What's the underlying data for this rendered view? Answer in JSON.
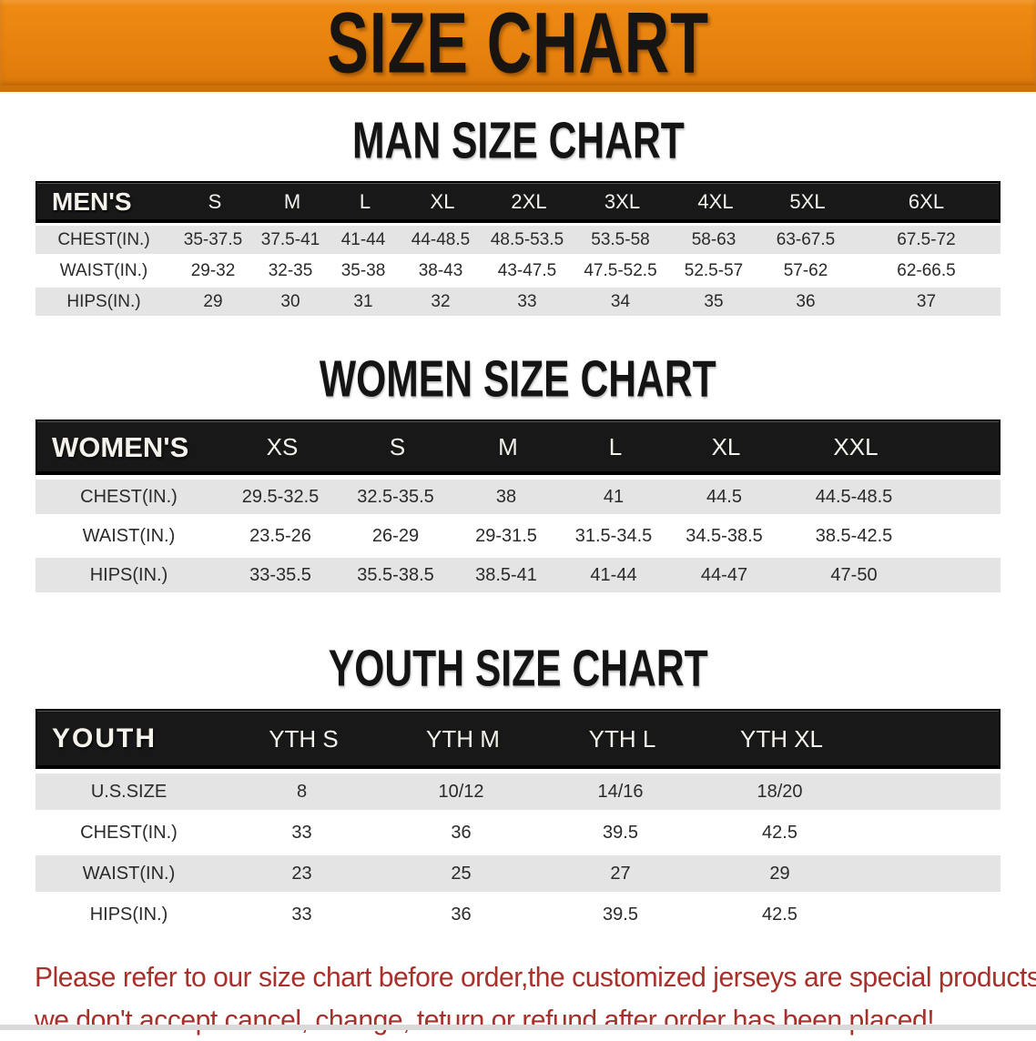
{
  "banner": {
    "title": "SIZE CHART",
    "bg_color": "#e8820e",
    "text_color": "#181411"
  },
  "colors": {
    "header_bar": "#181818",
    "row_shade": "#e4e4e4",
    "disclaimer_red": "#a8302a"
  },
  "chart_data": [
    {
      "type": "table",
      "id": "men",
      "title": "MAN SIZE CHART",
      "columns": [
        "MEN'S",
        "S",
        "M",
        "L",
        "XL",
        "2XL",
        "3XL",
        "4XL",
        "5XL",
        "6XL"
      ],
      "rows": [
        {
          "label": "CHEST(IN.)",
          "values": [
            "35-37.5",
            "37.5-41",
            "41-44",
            "44-48.5",
            "48.5-53.5",
            "53.5-58",
            "58-63",
            "63-67.5",
            "67.5-72"
          ]
        },
        {
          "label": "WAIST(IN.)",
          "values": [
            "29-32",
            "32-35",
            "35-38",
            "38-43",
            "43-47.5",
            "47.5-52.5",
            "52.5-57",
            "57-62",
            "62-66.5"
          ]
        },
        {
          "label": "HIPS(IN.)",
          "values": [
            "29",
            "30",
            "31",
            "32",
            "33",
            "34",
            "35",
            "36",
            "37"
          ]
        }
      ]
    },
    {
      "type": "table",
      "id": "women",
      "title": "WOMEN SIZE CHART",
      "columns": [
        "WOMEN'S",
        "XS",
        "S",
        "M",
        "L",
        "XL",
        "XXL"
      ],
      "rows": [
        {
          "label": "CHEST(IN.)",
          "values": [
            "29.5-32.5",
            "32.5-35.5",
            "38",
            "41",
            "44.5",
            "44.5-48.5"
          ]
        },
        {
          "label": "WAIST(IN.)",
          "values": [
            "23.5-26",
            "26-29",
            "29-31.5",
            "31.5-34.5",
            "34.5-38.5",
            "38.5-42.5"
          ]
        },
        {
          "label": "HIPS(IN.)",
          "values": [
            "33-35.5",
            "35.5-38.5",
            "38.5-41",
            "41-44",
            "44-47",
            "47-50"
          ]
        }
      ]
    },
    {
      "type": "table",
      "id": "youth",
      "title": "YOUTH SIZE CHART",
      "columns": [
        "YOUTH",
        "YTH S",
        "YTH M",
        "YTH L",
        "YTH XL"
      ],
      "rows": [
        {
          "label": "U.S.SIZE",
          "values": [
            "8",
            "10/12",
            "14/16",
            "18/20"
          ]
        },
        {
          "label": "CHEST(IN.)",
          "values": [
            "33",
            "36",
            "39.5",
            "42.5"
          ]
        },
        {
          "label": "WAIST(IN.)",
          "values": [
            "23",
            "25",
            "27",
            "29"
          ]
        },
        {
          "label": "HIPS(IN.)",
          "values": [
            "33",
            "36",
            "39.5",
            "42.5"
          ]
        }
      ]
    }
  ],
  "disclaimer": {
    "line1": "Please refer to our size chart before order,the customized jerseys are special products,",
    "line2": "we don't accept cancel, change, teturn or refund after order has been placed!"
  }
}
